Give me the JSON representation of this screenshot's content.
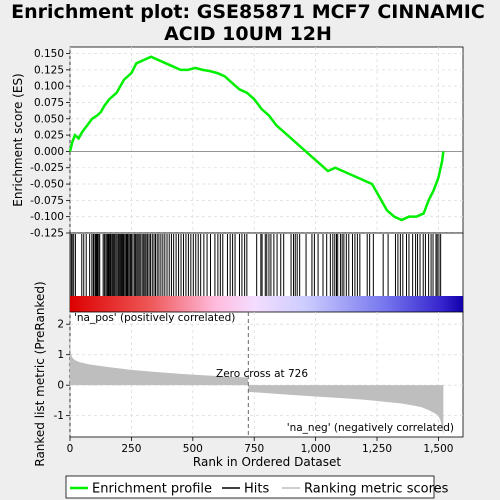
{
  "chart_data": {
    "type": "line",
    "title_line1": "Enrichment plot: GSE85871 MCF7 CINNAMIC",
    "title_line2": "ACID 10UM 12H",
    "es_panel": {
      "ylabel": "Enrichment score (ES)",
      "ylim": [
        -0.125,
        0.16
      ],
      "yticks": [
        "0.150",
        "0.125",
        "0.100",
        "0.075",
        "0.050",
        "0.025",
        "0.000",
        "-0.025",
        "-0.050",
        "-0.075",
        "-0.100",
        "-0.125"
      ],
      "ytick_values": [
        0.15,
        0.125,
        0.1,
        0.075,
        0.05,
        0.025,
        0.0,
        -0.025,
        -0.05,
        -0.075,
        -0.1,
        -0.125
      ],
      "series_color": "#00ee00",
      "x": [
        0,
        10,
        20,
        35,
        50,
        70,
        90,
        110,
        125,
        140,
        160,
        190,
        220,
        250,
        270,
        300,
        330,
        360,
        390,
        420,
        450,
        480,
        510,
        540,
        570,
        600,
        630,
        660,
        690,
        720,
        750,
        780,
        810,
        840,
        870,
        900,
        930,
        960,
        990,
        1020,
        1050,
        1080,
        1110,
        1140,
        1170,
        1200,
        1230,
        1260,
        1290,
        1320,
        1350,
        1380,
        1410,
        1440,
        1460,
        1480,
        1500,
        1515,
        1520
      ],
      "y": [
        0.0,
        0.015,
        0.025,
        0.02,
        0.03,
        0.04,
        0.05,
        0.055,
        0.06,
        0.07,
        0.08,
        0.09,
        0.11,
        0.12,
        0.135,
        0.14,
        0.145,
        0.14,
        0.135,
        0.13,
        0.125,
        0.125,
        0.128,
        0.125,
        0.123,
        0.12,
        0.115,
        0.105,
        0.095,
        0.09,
        0.08,
        0.065,
        0.055,
        0.04,
        0.03,
        0.02,
        0.01,
        0.0,
        -0.01,
        -0.02,
        -0.03,
        -0.025,
        -0.03,
        -0.035,
        -0.04,
        -0.045,
        -0.05,
        -0.07,
        -0.09,
        -0.1,
        -0.105,
        -0.1,
        -0.1,
        -0.095,
        -0.075,
        -0.06,
        -0.04,
        -0.015,
        0.0
      ]
    },
    "hits_panel": {
      "hit_color": "#000000",
      "hit_ranks": [
        5,
        9,
        15,
        22,
        48,
        56,
        66,
        80,
        89,
        95,
        98,
        104,
        108,
        112,
        117,
        121,
        135,
        140,
        146,
        151,
        155,
        158,
        162,
        165,
        170,
        174,
        178,
        182,
        187,
        192,
        197,
        201,
        206,
        210,
        214,
        218,
        223,
        228,
        232,
        236,
        241,
        246,
        250,
        256,
        262,
        267,
        272,
        277,
        282,
        288,
        294,
        300,
        305,
        310,
        316,
        322,
        328,
        335,
        342,
        348,
        355,
        362,
        370,
        378,
        386,
        395,
        404,
        413,
        422,
        432,
        442,
        452,
        462,
        472,
        482,
        492,
        502,
        512,
        522,
        532,
        545,
        558,
        572,
        590,
        602,
        612,
        622,
        641,
        652,
        662,
        672,
        690,
        700,
        711,
        720,
        760,
        777,
        782,
        795,
        801,
        810,
        818,
        830,
        843,
        858,
        870,
        900,
        910,
        917,
        925,
        935,
        961,
        985,
        995,
        1010,
        1030,
        1045,
        1060,
        1070,
        1078,
        1085,
        1090,
        1101,
        1108,
        1115,
        1125,
        1135,
        1150,
        1160,
        1170,
        1180,
        1210,
        1220,
        1235,
        1275,
        1295,
        1325,
        1335,
        1345,
        1355,
        1370,
        1380,
        1395,
        1407,
        1415,
        1425,
        1438,
        1447,
        1460,
        1470,
        1478,
        1490,
        1495,
        1502,
        1509
      ]
    },
    "rank_panel": {
      "ylabel": "Ranked list metric (PreRanked)",
      "ylim": [
        -1.7,
        2.4
      ],
      "yticks": [
        "2",
        "1",
        "0",
        "-1"
      ],
      "ytick_values": [
        2,
        1,
        0,
        -1
      ],
      "fill_color": "#bebebe",
      "x": [
        0,
        2,
        5,
        10,
        20,
        40,
        80,
        150,
        250,
        350,
        450,
        550,
        650,
        700,
        725,
        726,
        730,
        800,
        900,
        1000,
        1100,
        1200,
        1300,
        1350,
        1400,
        1430,
        1460,
        1480,
        1500,
        1510,
        1517,
        1520
      ],
      "y": [
        1.65,
        1.2,
        1.0,
        0.9,
        0.82,
        0.75,
        0.68,
        0.6,
        0.5,
        0.43,
        0.37,
        0.32,
        0.28,
        0.26,
        0.25,
        -0.2,
        -0.22,
        -0.26,
        -0.32,
        -0.37,
        -0.42,
        -0.48,
        -0.56,
        -0.6,
        -0.67,
        -0.72,
        -0.82,
        -0.9,
        -1.0,
        -1.2,
        -1.5,
        -1.65
      ],
      "zero_cross_rank": 726,
      "zero_cross_label": "Zero cross at 726",
      "pos_label": "'na_pos' (positively correlated)",
      "neg_label": "'na_neg' (negatively correlated)",
      "pos_label_color": "#cc0000",
      "neg_label_color": "#0000cc"
    },
    "xaxis": {
      "xlabel": "Rank in Ordered Dataset",
      "xlim": [
        0,
        1600
      ],
      "xticks": [
        "0",
        "250",
        "500",
        "750",
        "1,000",
        "1,250",
        "1,500"
      ],
      "xtick_values": [
        0,
        250,
        500,
        750,
        1000,
        1250,
        1500
      ]
    },
    "legend": {
      "position": "bottom",
      "items": [
        {
          "label": "Enrichment profile",
          "color": "#00ee00"
        },
        {
          "label": "Hits",
          "color": "#000000"
        },
        {
          "label": "Ranking metric scores",
          "color": "#bebebe"
        }
      ]
    }
  }
}
